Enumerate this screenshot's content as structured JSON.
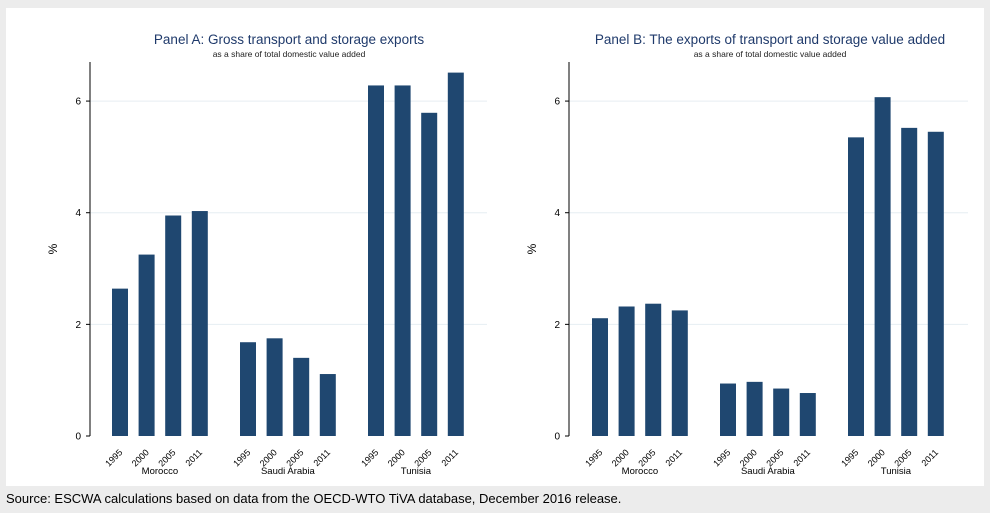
{
  "source": "Source: ESCWA calculations based on data from the OECD-WTO TiVA database, December 2016 release.",
  "colors": {
    "bar": "#1f4770",
    "panel_bg": "#ffffff",
    "outer_bg": "#ececec",
    "title": "#1f3a6b",
    "grid": "#e6eef2"
  },
  "chart_data": [
    {
      "type": "bar",
      "title": "Panel A: Gross transport and storage exports",
      "subtitle": "as a share of total domestic value added",
      "ylabel": "%",
      "ylim": [
        0,
        6.7
      ],
      "yticks": [
        0,
        2,
        4,
        6
      ],
      "grid": true,
      "groups": [
        "Morocco",
        "Saudi Arabia",
        "Tunisia"
      ],
      "categories": [
        "1995",
        "2000",
        "2005",
        "2011"
      ],
      "series": [
        {
          "group": "Morocco",
          "values": [
            2.64,
            3.25,
            3.95,
            4.03
          ]
        },
        {
          "group": "Saudi Arabia",
          "values": [
            1.68,
            1.75,
            1.4,
            1.11
          ]
        },
        {
          "group": "Tunisia",
          "values": [
            6.28,
            6.28,
            5.79,
            6.51
          ]
        }
      ]
    },
    {
      "type": "bar",
      "title": "Panel B: The exports of transport and storage value added",
      "subtitle": "as a share of total domestic value added",
      "ylabel": "%",
      "ylim": [
        0,
        6.7
      ],
      "yticks": [
        0,
        2,
        4,
        6
      ],
      "grid": true,
      "groups": [
        "Morocco",
        "Saudi Arabia",
        "Tunisia"
      ],
      "categories": [
        "1995",
        "2000",
        "2005",
        "2011"
      ],
      "series": [
        {
          "group": "Morocco",
          "values": [
            2.11,
            2.32,
            2.37,
            2.25
          ]
        },
        {
          "group": "Saudi Arabia",
          "values": [
            0.94,
            0.97,
            0.85,
            0.77
          ]
        },
        {
          "group": "Tunisia",
          "values": [
            5.35,
            6.07,
            5.52,
            5.45
          ]
        }
      ]
    }
  ]
}
